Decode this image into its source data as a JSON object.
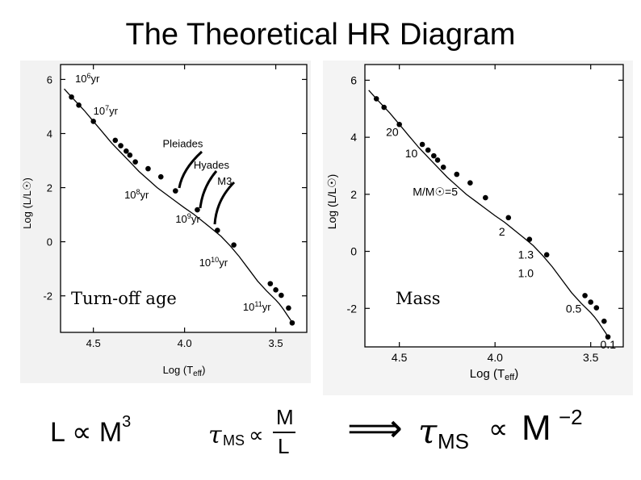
{
  "title": "The Theoretical HR Diagram",
  "colors": {
    "ink": "#000000",
    "panel_bg": "#f2f2f2",
    "page_bg": "#ffffff"
  },
  "chart_data": [
    {
      "type": "line",
      "xlabel": "Log (Teff)",
      "ylabel": "Log (L/L☉)",
      "xlim": [
        4.68,
        3.33
      ],
      "ylim": [
        -3.35,
        6.55
      ],
      "x_ticks": [
        "4.5",
        "4.0",
        "3.5"
      ],
      "x_tick_values": [
        4.5,
        4.0,
        3.5
      ],
      "y_ticks": [
        "6",
        "4",
        "2",
        "0",
        "-2"
      ],
      "y_tick_values": [
        6,
        4,
        2,
        0,
        -2
      ],
      "x_reversed": true,
      "series": [
        {
          "x": [
            4.66,
            4.62,
            4.55,
            4.5,
            4.45,
            4.4,
            4.35,
            4.3,
            4.25,
            4.2,
            4.15,
            4.1,
            4.05,
            4.0,
            3.95,
            3.9,
            3.85,
            3.8,
            3.75,
            3.7,
            3.65,
            3.6,
            3.55,
            3.5,
            3.48,
            3.46,
            3.44,
            3.42,
            3.41
          ],
          "y": [
            5.65,
            5.35,
            4.85,
            4.45,
            4.05,
            3.65,
            3.3,
            2.95,
            2.6,
            2.3,
            2.0,
            1.75,
            1.5,
            1.25,
            1.02,
            0.75,
            0.48,
            0.2,
            -0.15,
            -0.55,
            -1.0,
            -1.45,
            -1.82,
            -2.15,
            -2.3,
            -2.48,
            -2.68,
            -2.88,
            -3.0
          ]
        }
      ],
      "points": {
        "x": [
          4.62,
          4.58,
          4.5,
          4.38,
          4.35,
          4.32,
          4.3,
          4.27,
          4.2,
          4.13,
          4.05,
          3.93,
          3.82,
          3.73,
          3.53,
          3.5,
          3.47,
          3.43,
          3.41
        ],
        "y": [
          5.35,
          5.05,
          4.45,
          3.75,
          3.55,
          3.35,
          3.2,
          2.95,
          2.7,
          2.4,
          1.88,
          1.18,
          0.42,
          -0.12,
          -1.55,
          -1.78,
          -1.98,
          -2.45,
          -3.0
        ]
      },
      "annotations": [
        {
          "text_base": "10",
          "text_sup": "6",
          "text_unit": "yr",
          "x": 4.6,
          "y": 5.9
        },
        {
          "text_base": "10",
          "text_sup": "7",
          "text_unit": "yr",
          "x": 4.5,
          "y": 4.7
        },
        {
          "text_base": "Pleiades",
          "x": 4.12,
          "y": 3.5
        },
        {
          "text_base": "Hyades",
          "x": 3.95,
          "y": 2.7
        },
        {
          "text_base": "M3",
          "x": 3.82,
          "y": 2.1
        },
        {
          "text_base": "10",
          "text_sup": "8",
          "text_unit": "yr",
          "x": 4.33,
          "y": 1.6
        },
        {
          "text_base": "10",
          "text_sup": "9",
          "text_unit": "yr",
          "x": 4.05,
          "y": 0.7
        },
        {
          "text_base": "10",
          "text_sup": "10",
          "text_unit": "yr",
          "x": 3.92,
          "y": -0.9
        },
        {
          "text_base": "10",
          "text_sup": "11",
          "text_unit": "yr",
          "x": 3.68,
          "y": -2.55
        }
      ],
      "overlay_label": "Turn-off age"
    },
    {
      "type": "line",
      "xlabel": "Log (Teff)",
      "ylabel": "Log (L/L☉)",
      "xlim": [
        4.68,
        3.33
      ],
      "ylim": [
        -3.35,
        6.55
      ],
      "x_ticks": [
        "4.5",
        "4.0",
        "3.5"
      ],
      "x_tick_values": [
        4.5,
        4.0,
        3.5
      ],
      "y_ticks": [
        "6",
        "4",
        "2",
        "0",
        "-2"
      ],
      "y_tick_values": [
        6,
        4,
        2,
        0,
        -2
      ],
      "x_reversed": true,
      "series": [
        {
          "x": [
            4.66,
            4.62,
            4.55,
            4.5,
            4.45,
            4.4,
            4.35,
            4.3,
            4.25,
            4.2,
            4.15,
            4.1,
            4.05,
            4.0,
            3.95,
            3.9,
            3.85,
            3.8,
            3.75,
            3.7,
            3.65,
            3.6,
            3.55,
            3.5,
            3.48,
            3.46,
            3.44,
            3.42,
            3.41
          ],
          "y": [
            5.65,
            5.35,
            4.85,
            4.45,
            4.05,
            3.65,
            3.3,
            2.95,
            2.6,
            2.3,
            2.0,
            1.75,
            1.5,
            1.25,
            1.02,
            0.75,
            0.48,
            0.2,
            -0.15,
            -0.55,
            -1.0,
            -1.45,
            -1.82,
            -2.15,
            -2.3,
            -2.48,
            -2.68,
            -2.88,
            -3.0
          ]
        }
      ],
      "points": {
        "x": [
          4.62,
          4.58,
          4.5,
          4.38,
          4.35,
          4.32,
          4.3,
          4.27,
          4.2,
          4.13,
          4.05,
          3.93,
          3.82,
          3.73,
          3.53,
          3.5,
          3.47,
          3.43,
          3.41
        ],
        "y": [
          5.35,
          5.05,
          4.45,
          3.75,
          3.55,
          3.35,
          3.2,
          2.95,
          2.7,
          2.4,
          1.88,
          1.18,
          0.42,
          -0.12,
          -1.55,
          -1.78,
          -1.98,
          -2.45,
          -3.0
        ]
      },
      "annotations": [
        {
          "text_base": "20",
          "x": 4.57,
          "y": 4.05
        },
        {
          "text_base": "10",
          "x": 4.47,
          "y": 3.3
        },
        {
          "text_base": "M/M☉=5",
          "x": 4.43,
          "y": 1.95
        },
        {
          "text_base": "2",
          "x": 3.98,
          "y": 0.55
        },
        {
          "text_base": "1.3",
          "x": 3.88,
          "y": -0.25
        },
        {
          "text_base": "1.0",
          "x": 3.88,
          "y": -0.9
        },
        {
          "text_base": "0.5",
          "x": 3.63,
          "y": -2.15
        },
        {
          "text_base": "0.1",
          "x": 3.45,
          "y": -3.4
        }
      ],
      "overlay_label": "Mass"
    }
  ],
  "formulas": {
    "left": {
      "base": "L ∝ M",
      "sup": "3"
    },
    "middle": {
      "tau": "τ",
      "sub": "MS",
      "prop": "∝",
      "num": "M",
      "den": "L"
    },
    "right": {
      "arrow": "⟹",
      "tau": "τ",
      "sub": "MS",
      "prop": "∝",
      "base": "M",
      "sup": "−2"
    }
  }
}
